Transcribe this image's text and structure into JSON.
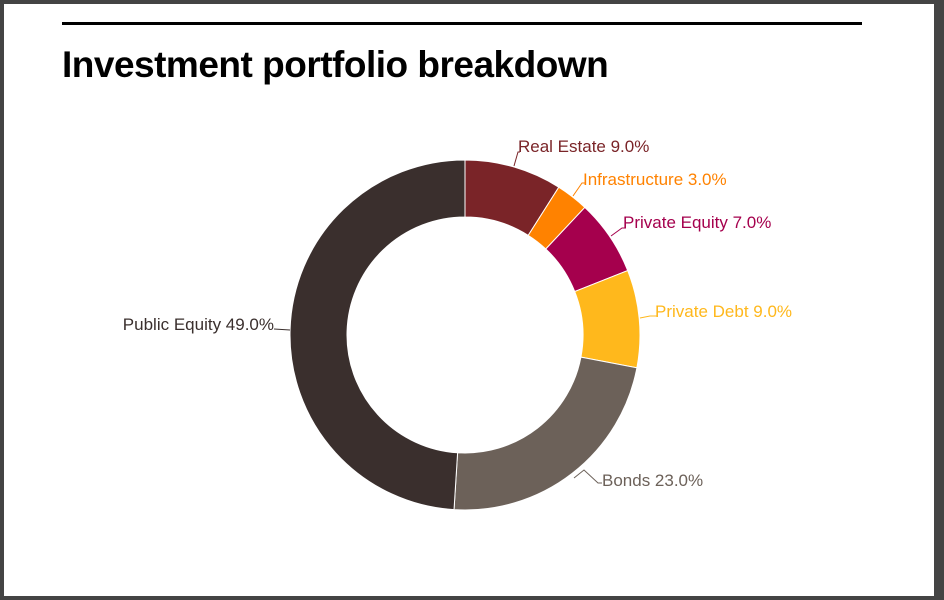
{
  "title": "Investment portfolio breakdown",
  "chart_data": {
    "type": "pie",
    "subtype": "donut",
    "title": "Investment portfolio breakdown",
    "categories": [
      "Real Estate",
      "Infrastructure",
      "Private Equity",
      "Private Debt",
      "Bonds",
      "Public Equity"
    ],
    "values": [
      9.0,
      3.0,
      7.0,
      9.0,
      23.0,
      49.0
    ],
    "unit": "%",
    "colors": [
      "#7a2428",
      "#ff8200",
      "#a5004d",
      "#ffb81c",
      "#6c6159",
      "#3a2f2d"
    ],
    "labels": [
      "Real Estate 9.0%",
      "Infrastructure 3.0%",
      "Private Equity 7.0%",
      "Private Debt 9.0%",
      "Bonds 23.0%",
      "Public Equity 49.0%"
    ],
    "legend": "none (direct labels with leader lines)"
  },
  "labels": {
    "real_estate": "Real Estate 9.0%",
    "infrastructure": "Infrastructure 3.0%",
    "private_equity": "Private Equity 7.0%",
    "private_debt": "Private Debt 9.0%",
    "bonds": "Bonds 23.0%",
    "public_equity": "Public Equity 49.0%"
  }
}
